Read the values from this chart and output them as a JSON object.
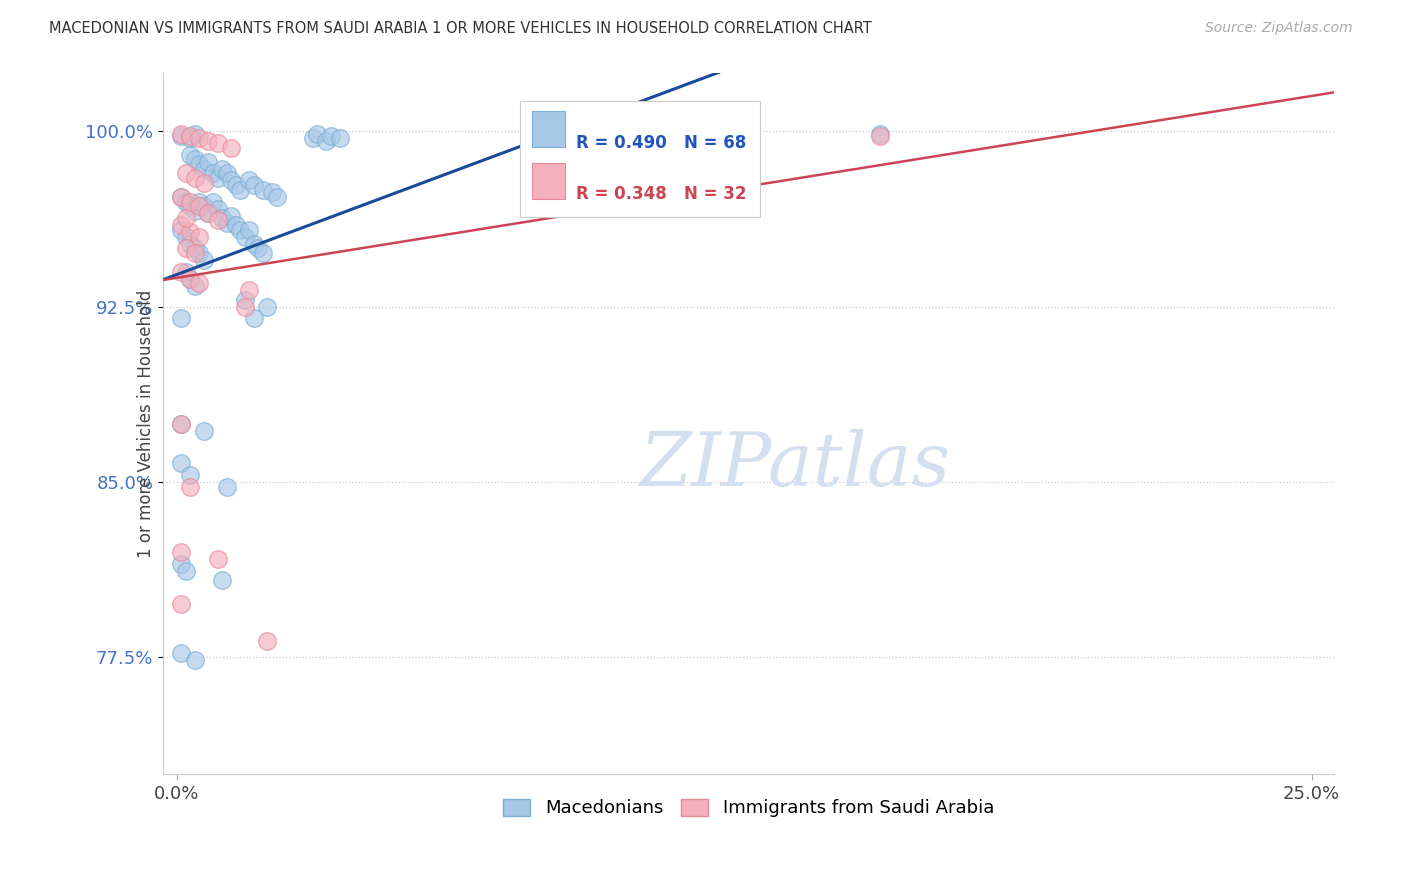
{
  "title": "MACEDONIAN VS IMMIGRANTS FROM SAUDI ARABIA 1 OR MORE VEHICLES IN HOUSEHOLD CORRELATION CHART",
  "source": "Source: ZipAtlas.com",
  "ylabel": "1 or more Vehicles in Household",
  "ytick_vals": [
    0.775,
    0.85,
    0.925,
    1.0
  ],
  "ytick_labels": [
    "77.5%",
    "85.0%",
    "92.5%",
    "100.0%"
  ],
  "xtick_vals": [
    0.0,
    0.25
  ],
  "xtick_labels": [
    "0.0%",
    "25.0%"
  ],
  "xlim": [
    -0.003,
    0.255
  ],
  "ylim": [
    0.725,
    1.025
  ],
  "legend_label1": "Macedonians",
  "legend_label2": "Immigrants from Saudi Arabia",
  "R1": 0.49,
  "N1": 68,
  "R2": 0.348,
  "N2": 32,
  "blue_color": "#a8c8e8",
  "pink_color": "#f4b0bc",
  "blue_edge": "#7aaed4",
  "pink_edge": "#e88898",
  "blue_line": "#1a4a99",
  "pink_line": "#cc4455",
  "watermark_color": "#d4dff0",
  "blue_dots": [
    [
      0.001,
      0.998
    ],
    [
      0.003,
      0.997
    ],
    [
      0.004,
      0.999
    ],
    [
      0.03,
      0.997
    ],
    [
      0.031,
      0.999
    ],
    [
      0.033,
      0.996
    ],
    [
      0.034,
      0.998
    ],
    [
      0.036,
      0.997
    ],
    [
      0.003,
      0.99
    ],
    [
      0.004,
      0.988
    ],
    [
      0.005,
      0.986
    ],
    [
      0.006,
      0.984
    ],
    [
      0.007,
      0.987
    ],
    [
      0.008,
      0.982
    ],
    [
      0.009,
      0.98
    ],
    [
      0.01,
      0.984
    ],
    [
      0.011,
      0.982
    ],
    [
      0.012,
      0.979
    ],
    [
      0.013,
      0.977
    ],
    [
      0.014,
      0.975
    ],
    [
      0.016,
      0.979
    ],
    [
      0.017,
      0.977
    ],
    [
      0.019,
      0.975
    ],
    [
      0.021,
      0.974
    ],
    [
      0.022,
      0.972
    ],
    [
      0.001,
      0.972
    ],
    [
      0.002,
      0.97
    ],
    [
      0.003,
      0.968
    ],
    [
      0.004,
      0.966
    ],
    [
      0.005,
      0.97
    ],
    [
      0.006,
      0.968
    ],
    [
      0.007,
      0.965
    ],
    [
      0.008,
      0.97
    ],
    [
      0.009,
      0.967
    ],
    [
      0.01,
      0.963
    ],
    [
      0.011,
      0.961
    ],
    [
      0.012,
      0.964
    ],
    [
      0.013,
      0.96
    ],
    [
      0.014,
      0.958
    ],
    [
      0.015,
      0.955
    ],
    [
      0.016,
      0.958
    ],
    [
      0.017,
      0.952
    ],
    [
      0.018,
      0.95
    ],
    [
      0.019,
      0.948
    ],
    [
      0.001,
      0.958
    ],
    [
      0.002,
      0.955
    ],
    [
      0.003,
      0.952
    ],
    [
      0.004,
      0.95
    ],
    [
      0.005,
      0.948
    ],
    [
      0.006,
      0.945
    ],
    [
      0.002,
      0.94
    ],
    [
      0.003,
      0.937
    ],
    [
      0.004,
      0.934
    ],
    [
      0.015,
      0.928
    ],
    [
      0.02,
      0.925
    ],
    [
      0.001,
      0.92
    ],
    [
      0.017,
      0.92
    ],
    [
      0.001,
      0.875
    ],
    [
      0.006,
      0.872
    ],
    [
      0.001,
      0.858
    ],
    [
      0.003,
      0.853
    ],
    [
      0.011,
      0.848
    ],
    [
      0.001,
      0.815
    ],
    [
      0.002,
      0.812
    ],
    [
      0.01,
      0.808
    ],
    [
      0.001,
      0.777
    ],
    [
      0.004,
      0.774
    ],
    [
      0.155,
      0.999
    ]
  ],
  "pink_dots": [
    [
      0.001,
      0.999
    ],
    [
      0.003,
      0.998
    ],
    [
      0.005,
      0.997
    ],
    [
      0.007,
      0.996
    ],
    [
      0.009,
      0.995
    ],
    [
      0.012,
      0.993
    ],
    [
      0.002,
      0.982
    ],
    [
      0.004,
      0.98
    ],
    [
      0.006,
      0.978
    ],
    [
      0.001,
      0.972
    ],
    [
      0.003,
      0.97
    ],
    [
      0.005,
      0.968
    ],
    [
      0.007,
      0.965
    ],
    [
      0.009,
      0.962
    ],
    [
      0.001,
      0.96
    ],
    [
      0.003,
      0.957
    ],
    [
      0.005,
      0.955
    ],
    [
      0.002,
      0.95
    ],
    [
      0.004,
      0.948
    ],
    [
      0.001,
      0.94
    ],
    [
      0.003,
      0.937
    ],
    [
      0.005,
      0.935
    ],
    [
      0.016,
      0.932
    ],
    [
      0.015,
      0.925
    ],
    [
      0.001,
      0.875
    ],
    [
      0.003,
      0.848
    ],
    [
      0.001,
      0.82
    ],
    [
      0.009,
      0.817
    ],
    [
      0.001,
      0.798
    ],
    [
      0.02,
      0.782
    ],
    [
      0.155,
      0.998
    ],
    [
      0.002,
      0.963
    ]
  ]
}
